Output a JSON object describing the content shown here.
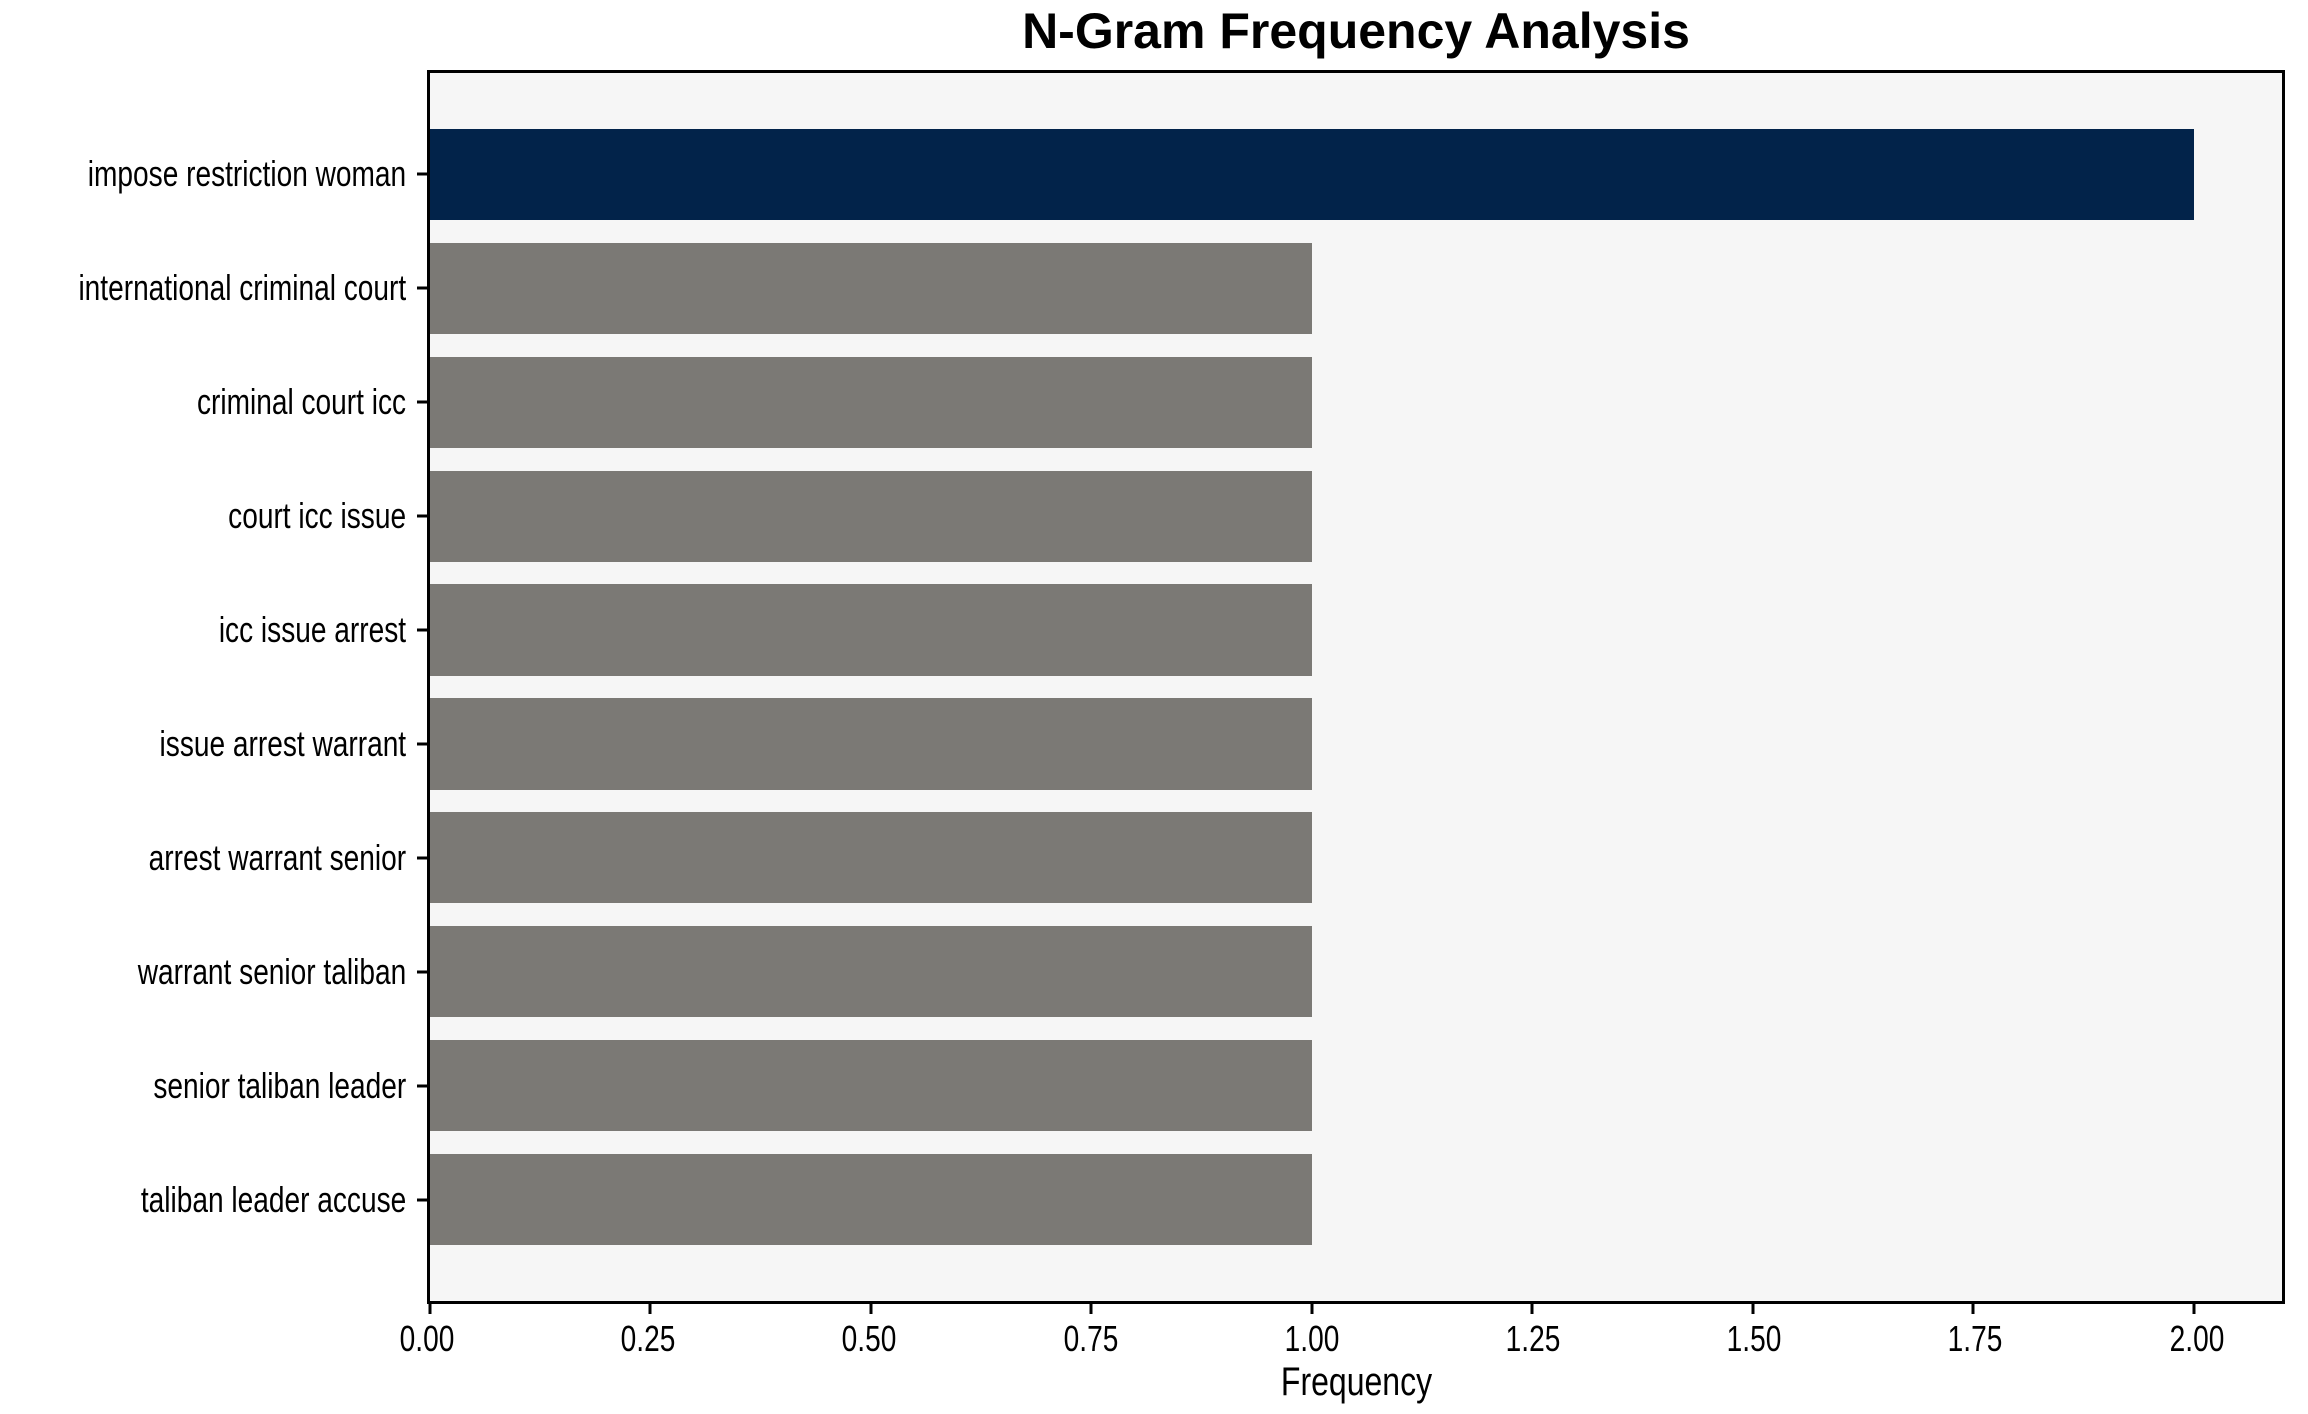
{
  "chart_data": {
    "type": "bar",
    "orientation": "horizontal",
    "title": "N-Gram Frequency Analysis",
    "xlabel": "Frequency",
    "ylabel": "",
    "categories": [
      "impose restriction woman",
      "international criminal court",
      "criminal court icc",
      "court icc issue",
      "icc issue arrest",
      "issue arrest warrant",
      "arrest warrant senior",
      "warrant senior taliban",
      "senior taliban leader",
      "taliban leader accuse"
    ],
    "values": [
      2,
      1,
      1,
      1,
      1,
      1,
      1,
      1,
      1,
      1
    ],
    "bar_colors": [
      "#02234a",
      "#7b7975",
      "#7b7975",
      "#7b7975",
      "#7b7975",
      "#7b7975",
      "#7b7975",
      "#7b7975",
      "#7b7975",
      "#7b7975"
    ],
    "highlight_color": "#02234a",
    "default_bar_color": "#7b7975",
    "plot_background": "#f6f6f6",
    "figure_background": "#ffffff",
    "axis_color": "#000000",
    "xlim": [
      0,
      2.1
    ],
    "x_ticks": [
      {
        "value": 0.0,
        "label": "0.00"
      },
      {
        "value": 0.25,
        "label": "0.25"
      },
      {
        "value": 0.5,
        "label": "0.50"
      },
      {
        "value": 0.75,
        "label": "0.75"
      },
      {
        "value": 1.0,
        "label": "1.00"
      },
      {
        "value": 1.25,
        "label": "1.25"
      },
      {
        "value": 1.5,
        "label": "1.50"
      },
      {
        "value": 1.75,
        "label": "1.75"
      },
      {
        "value": 2.0,
        "label": "2.00"
      }
    ],
    "grid": false,
    "legend": false
  }
}
